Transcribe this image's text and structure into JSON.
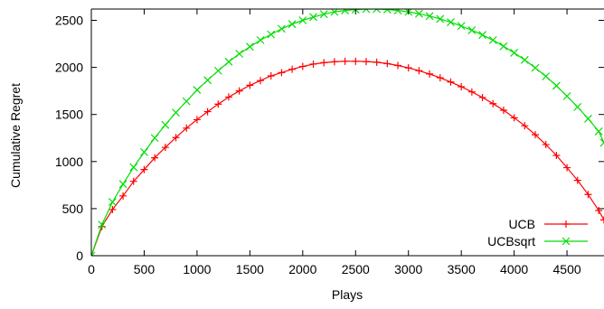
{
  "chart_data": {
    "type": "line",
    "xlabel": "Plays",
    "ylabel": "Cumulative Regret",
    "xlim": [
      0,
      4850
    ],
    "ylim": [
      0,
      2620
    ],
    "x_ticks": [
      0,
      500,
      1000,
      1500,
      2000,
      2500,
      3000,
      3500,
      4000,
      4500
    ],
    "y_ticks": [
      0,
      500,
      1000,
      1500,
      2000,
      2500
    ],
    "grid": false,
    "legend_position": "bottom-right",
    "series": [
      {
        "name": "UCB",
        "color": "#ff0000",
        "marker": "plus",
        "x": [
          0,
          100,
          200,
          300,
          400,
          500,
          600,
          700,
          800,
          900,
          1000,
          1100,
          1200,
          1300,
          1400,
          1500,
          1600,
          1700,
          1800,
          1900,
          2000,
          2100,
          2200,
          2300,
          2400,
          2500,
          2600,
          2700,
          2800,
          2900,
          3000,
          3100,
          3200,
          3300,
          3400,
          3500,
          3600,
          3700,
          3800,
          3900,
          4000,
          4100,
          4200,
          4300,
          4400,
          4500,
          4600,
          4700,
          4800,
          4850
        ],
        "y": [
          0,
          310,
          490,
          635,
          790,
          915,
          1040,
          1150,
          1255,
          1355,
          1445,
          1530,
          1610,
          1685,
          1750,
          1810,
          1860,
          1910,
          1945,
          1980,
          2010,
          2035,
          2050,
          2060,
          2065,
          2065,
          2062,
          2055,
          2040,
          2020,
          1995,
          1965,
          1930,
          1890,
          1845,
          1795,
          1740,
          1680,
          1615,
          1545,
          1465,
          1380,
          1285,
          1180,
          1065,
          935,
          800,
          650,
          480,
          380
        ]
      },
      {
        "name": "UCBsqrt",
        "color": "#00dd00",
        "marker": "cross",
        "x": [
          0,
          100,
          200,
          300,
          400,
          500,
          600,
          700,
          800,
          900,
          1000,
          1100,
          1200,
          1300,
          1400,
          1500,
          1600,
          1700,
          1800,
          1900,
          2000,
          2100,
          2200,
          2300,
          2400,
          2500,
          2600,
          2700,
          2800,
          2900,
          3000,
          3100,
          3200,
          3300,
          3400,
          3500,
          3600,
          3700,
          3800,
          3900,
          4000,
          4100,
          4200,
          4300,
          4400,
          4500,
          4600,
          4700,
          4800,
          4850
        ],
        "y": [
          0,
          330,
          570,
          760,
          940,
          1100,
          1250,
          1390,
          1520,
          1640,
          1760,
          1865,
          1965,
          2060,
          2145,
          2220,
          2290,
          2350,
          2410,
          2460,
          2500,
          2535,
          2565,
          2590,
          2605,
          2615,
          2620,
          2620,
          2615,
          2605,
          2590,
          2570,
          2545,
          2515,
          2480,
          2440,
          2395,
          2345,
          2290,
          2225,
          2155,
          2080,
          1995,
          1905,
          1805,
          1695,
          1580,
          1455,
          1320,
          1200
        ]
      }
    ]
  }
}
